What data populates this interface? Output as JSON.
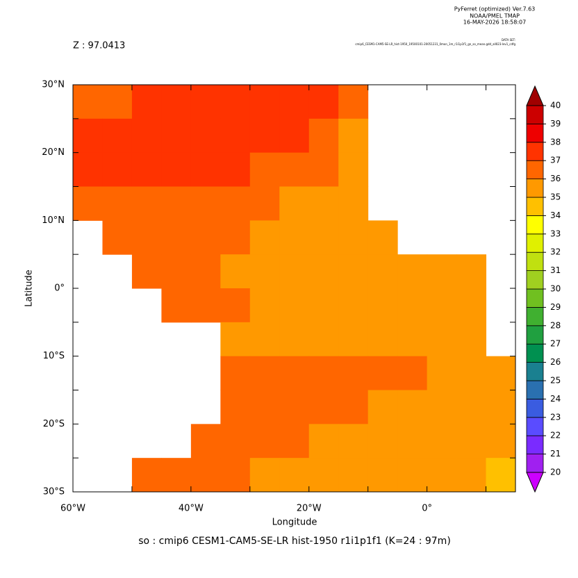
{
  "chart_data": {
    "type": "heatmap",
    "header": [
      "PyFerret (optimized) Ver.7.63",
      "NOAA/PMEL TMAP",
      "16-MAY-2026 18:58:07"
    ],
    "subtitle": "Z : 97.0413",
    "dataset_label": "DATA SET:",
    "dataset": "cmip6_CESM1-CAM5-SE-LR_hist-1950_19500101-20051231_0mon_1m_r1i1p1f1_gn_so_mean.gdd_all023-lev1_cdfg",
    "xlabel": "Longitude",
    "ylabel": "Latitude",
    "title": "so : cmip6 CESM1-CAM5-SE-LR hist-1950 r1i1p1f1   (K=24 : 97m)",
    "xlim": [
      -60,
      15
    ],
    "ylim": [
      -30,
      30
    ],
    "xticks": [
      {
        "value": -60,
        "label": "60°W"
      },
      {
        "value": -40,
        "label": "40°W"
      },
      {
        "value": -20,
        "label": "20°W"
      },
      {
        "value": 0,
        "label": "0°"
      }
    ],
    "xminor_ticks": [
      -50,
      -30,
      -10,
      10
    ],
    "yticks": [
      {
        "value": 30,
        "label": "30°N"
      },
      {
        "value": 20,
        "label": "20°N"
      },
      {
        "value": 10,
        "label": "10°N"
      },
      {
        "value": 0,
        "label": "0°"
      },
      {
        "value": -10,
        "label": "10°S"
      },
      {
        "value": -20,
        "label": "20°S"
      },
      {
        "value": -30,
        "label": "30°S"
      }
    ],
    "yminor_ticks": [
      25,
      15,
      5,
      -5,
      -15,
      -25
    ],
    "xbins": [
      -60,
      -55,
      -50,
      -45,
      -40,
      -35,
      -30,
      -25,
      -20,
      -15,
      -10,
      -5,
      0,
      5,
      10,
      15
    ],
    "ybins": [
      30,
      25,
      20,
      15,
      10,
      5,
      0,
      -5,
      -10,
      -15,
      -20,
      -25,
      -30
    ],
    "z": [
      [
        36.5,
        36.5,
        37.5,
        37.5,
        37.5,
        37.5,
        37.5,
        37.5,
        37.5,
        36.5,
        null,
        null,
        null,
        null,
        null
      ],
      [
        37.5,
        37.5,
        37.5,
        37.5,
        37.5,
        37.5,
        37.5,
        37.5,
        36.5,
        35.5,
        null,
        null,
        null,
        null,
        null
      ],
      [
        37.5,
        37.5,
        37.5,
        37.5,
        37.5,
        37.5,
        36.5,
        36.5,
        36.5,
        35.5,
        null,
        null,
        null,
        null,
        null
      ],
      [
        36.5,
        36.5,
        36.5,
        36.5,
        36.5,
        36.5,
        36.5,
        35.5,
        35.5,
        35.5,
        null,
        null,
        null,
        null,
        null
      ],
      [
        null,
        36.5,
        36.5,
        36.5,
        36.5,
        36.5,
        35.5,
        35.5,
        35.5,
        35.5,
        35.5,
        null,
        null,
        null,
        null
      ],
      [
        null,
        null,
        36.5,
        36.5,
        36.5,
        35.5,
        35.5,
        35.5,
        35.5,
        35.5,
        35.5,
        35.5,
        35.5,
        35.5,
        null
      ],
      [
        null,
        null,
        null,
        36.5,
        36.5,
        36.5,
        35.5,
        35.5,
        35.5,
        35.5,
        35.5,
        35.5,
        35.5,
        35.5,
        null
      ],
      [
        null,
        null,
        null,
        null,
        null,
        35.5,
        35.5,
        35.5,
        35.5,
        35.5,
        35.5,
        35.5,
        35.5,
        35.5,
        null
      ],
      [
        null,
        null,
        null,
        null,
        null,
        36.5,
        36.5,
        36.5,
        36.5,
        36.5,
        36.5,
        36.5,
        35.5,
        35.5,
        35.5
      ],
      [
        null,
        null,
        null,
        null,
        null,
        36.5,
        36.5,
        36.5,
        36.5,
        36.5,
        35.5,
        35.5,
        35.5,
        35.5,
        35.5
      ],
      [
        null,
        null,
        null,
        null,
        36.5,
        36.5,
        36.5,
        36.5,
        35.5,
        35.5,
        35.5,
        35.5,
        35.5,
        35.5,
        35.5
      ],
      [
        null,
        null,
        36.5,
        36.5,
        36.5,
        36.5,
        35.5,
        35.5,
        35.5,
        35.5,
        35.5,
        35.5,
        35.5,
        35.5,
        34.5
      ]
    ],
    "levels": [
      20,
      21,
      22,
      23,
      24,
      25,
      26,
      27,
      28,
      29,
      30,
      31,
      32,
      33,
      34,
      35,
      36,
      37,
      38,
      39,
      40
    ],
    "colors": [
      "#a020f0",
      "#7a2bff",
      "#5a4cff",
      "#3a5ce0",
      "#2a70b0",
      "#1a8090",
      "#009050",
      "#20a040",
      "#40b030",
      "#70c020",
      "#a0d020",
      "#c0e010",
      "#e0f000",
      "#ffff00",
      "#ffc000",
      "#ff9900",
      "#ff6600",
      "#ff3300",
      "#ee0000",
      "#cc0000"
    ],
    "over_color": "#a00000",
    "under_color": "#cc00ff"
  }
}
